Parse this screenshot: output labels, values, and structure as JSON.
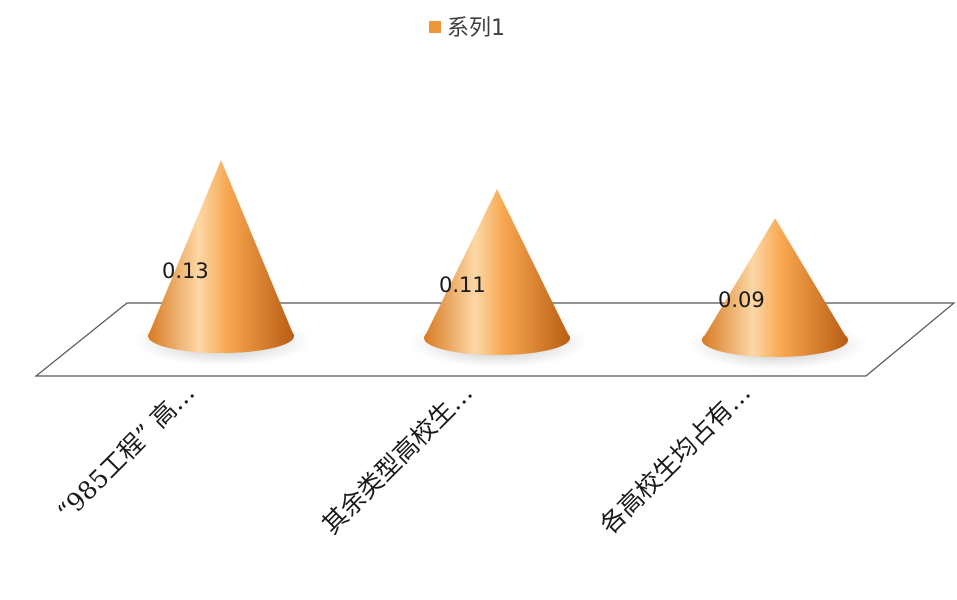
{
  "chart_data": {
    "type": "bar",
    "style": "3d-cone",
    "categories": [
      "“985工程” 高…",
      "其余类型高校生…",
      "各高校生均占有…"
    ],
    "series": [
      {
        "name": "系列1",
        "values": [
          0.13,
          0.11,
          0.09
        ],
        "data_labels": [
          "0.13",
          "0.11",
          "0.09"
        ],
        "color": "#f0963a"
      }
    ],
    "legend_position": "top",
    "grid": false,
    "colors": {
      "cone_light": "#fde0b4",
      "cone_mid": "#f5a04a",
      "cone_dark": "#b85a12",
      "floor_stroke": "#555555"
    }
  }
}
